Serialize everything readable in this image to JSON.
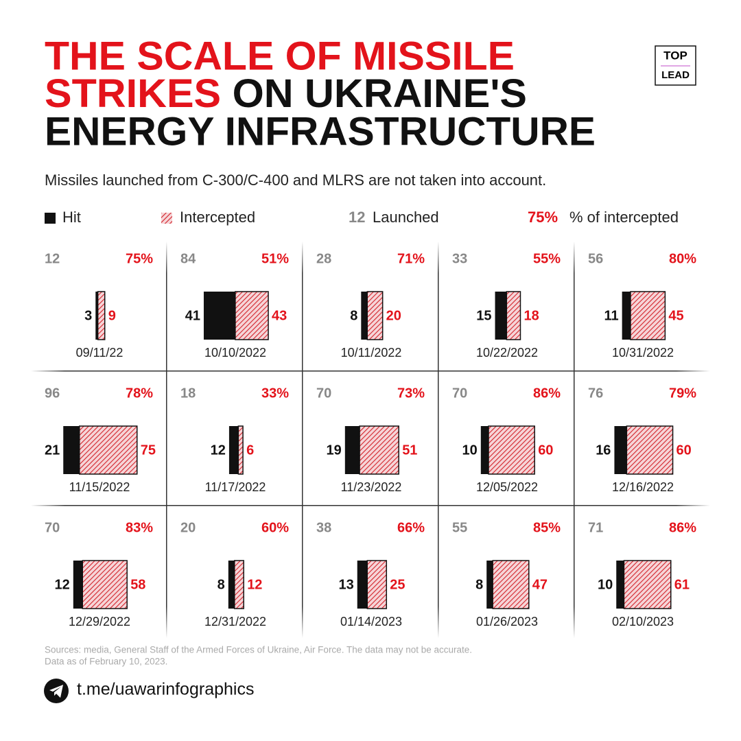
{
  "header": {
    "title_red_1": "THE SCALE OF MISSILE",
    "title_red_2": "STRIKES",
    "title_black_2": " ON UKRAINE'S",
    "title_black_3": "ENERGY INFRASTRUCTURE",
    "logo_top": "TOP",
    "logo_bottom": "LEAD",
    "subtitle": "Missiles launched from C-300/C-400 and MLRS are not taken into account."
  },
  "legend": {
    "hit": "Hit",
    "intercepted": "Intercepted",
    "launched_sample": "12",
    "launched": "Launched",
    "pct_sample": "75%",
    "pct": "% of intercepted"
  },
  "panels": [
    {
      "launched": 12,
      "pct": 75,
      "pct_label": "75%",
      "hit": 3,
      "intercepted": 9,
      "date": "09/11/22"
    },
    {
      "launched": 84,
      "pct": 51,
      "pct_label": "51%",
      "hit": 41,
      "intercepted": 43,
      "date": "10/10/2022"
    },
    {
      "launched": 28,
      "pct": 71,
      "pct_label": "71%",
      "hit": 8,
      "intercepted": 20,
      "date": "10/11/2022"
    },
    {
      "launched": 33,
      "pct": 55,
      "pct_label": "55%",
      "hit": 15,
      "intercepted": 18,
      "date": "10/22/2022"
    },
    {
      "launched": 56,
      "pct": 80,
      "pct_label": "80%",
      "hit": 11,
      "intercepted": 45,
      "date": "10/31/2022"
    },
    {
      "launched": 96,
      "pct": 78,
      "pct_label": "78%",
      "hit": 21,
      "intercepted": 75,
      "date": "11/15/2022"
    },
    {
      "launched": 18,
      "pct": 33,
      "pct_label": "33%",
      "hit": 12,
      "intercepted": 6,
      "date": "11/17/2022"
    },
    {
      "launched": 70,
      "pct": 73,
      "pct_label": "73%",
      "hit": 19,
      "intercepted": 51,
      "date": "11/23/2022"
    },
    {
      "launched": 70,
      "pct": 86,
      "pct_label": "86%",
      "hit": 10,
      "intercepted": 60,
      "date": "12/05/2022"
    },
    {
      "launched": 76,
      "pct": 79,
      "pct_label": "79%",
      "hit": 16,
      "intercepted": 60,
      "date": "12/16/2022"
    },
    {
      "launched": 70,
      "pct": 83,
      "pct_label": "83%",
      "hit": 12,
      "intercepted": 58,
      "date": "12/29/2022"
    },
    {
      "launched": 20,
      "pct": 60,
      "pct_label": "60%",
      "hit": 8,
      "intercepted": 12,
      "date": "12/31/2022"
    },
    {
      "launched": 38,
      "pct": 66,
      "pct_label": "66%",
      "hit": 13,
      "intercepted": 25,
      "date": "01/14/2023"
    },
    {
      "launched": 55,
      "pct": 85,
      "pct_label": "85%",
      "hit": 8,
      "intercepted": 47,
      "date": "01/26/2023"
    },
    {
      "launched": 71,
      "pct": 86,
      "pct_label": "86%",
      "hit": 10,
      "intercepted": 61,
      "date": "02/10/2023"
    }
  ],
  "footer": {
    "source_1": "Sources: media, General Staff of the Armed Forces of Ukraine, Air Force. The data may not be accurate.",
    "source_2": "Data as of February 10, 2023.",
    "link": "t.me/uawarinfographics"
  }
}
